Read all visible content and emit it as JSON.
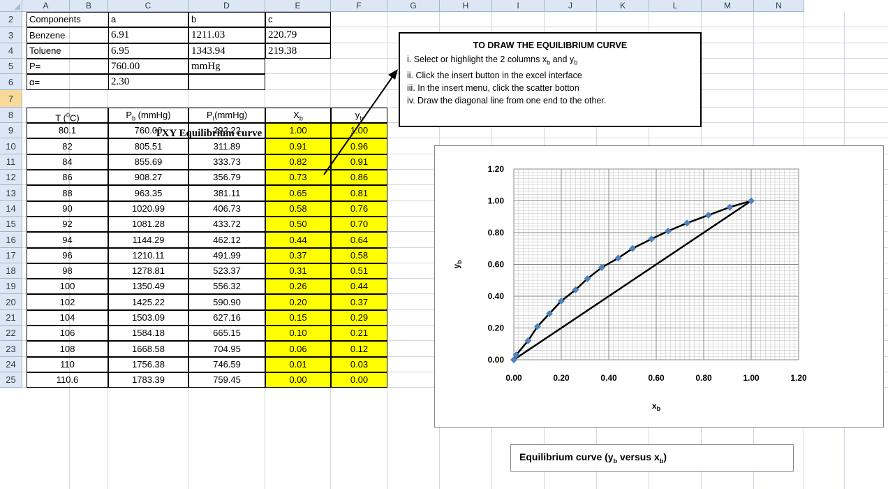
{
  "columns": [
    "A",
    "B",
    "C",
    "D",
    "E",
    "F",
    "G",
    "H",
    "I",
    "J",
    "K",
    "L",
    "M",
    "N"
  ],
  "rows": [
    "2",
    "3",
    "4",
    "5",
    "6",
    "7",
    "8",
    "9",
    "10",
    "11",
    "12",
    "13",
    "14",
    "15",
    "16",
    "17",
    "18",
    "19",
    "20",
    "21",
    "22",
    "23",
    "24",
    "25"
  ],
  "constants": {
    "headers": [
      "Components",
      "a",
      "b",
      "c"
    ],
    "benzene": [
      "Benzene",
      "6.91",
      "1211.03",
      "220.79"
    ],
    "toluene": [
      "Toluene",
      "6.95",
      "1343.94",
      "219.38"
    ],
    "pressure": [
      "P=",
      "760.00",
      "mmHg"
    ],
    "alpha": [
      "α=",
      "2.30"
    ]
  },
  "table": {
    "title": "TXY Equilibrium curve data",
    "headers": {
      "t": "T (",
      "t_sup": "0",
      "t_end": "C)",
      "pb": "P",
      "pb_sub": "b",
      "pb_end": " (mmHg)",
      "pt": "P",
      "pt_sub": "t",
      "pt_end": "(mmHg)",
      "xb": "X",
      "xb_sub": "b",
      "yb": "y",
      "yb_sub": "b"
    },
    "rows": [
      [
        "80.1",
        "760.00",
        "292.22",
        "1.00",
        "1.00"
      ],
      [
        "82",
        "805.51",
        "311.89",
        "0.91",
        "0.96"
      ],
      [
        "84",
        "855.69",
        "333.73",
        "0.82",
        "0.91"
      ],
      [
        "86",
        "908.27",
        "356.79",
        "0.73",
        "0.86"
      ],
      [
        "88",
        "963.35",
        "381.11",
        "0.65",
        "0.81"
      ],
      [
        "90",
        "1020.99",
        "406.73",
        "0.58",
        "0.76"
      ],
      [
        "92",
        "1081.28",
        "433.72",
        "0.50",
        "0.70"
      ],
      [
        "94",
        "1144.29",
        "462.12",
        "0.44",
        "0.64"
      ],
      [
        "96",
        "1210.11",
        "491.99",
        "0.37",
        "0.58"
      ],
      [
        "98",
        "1278.81",
        "523.37",
        "0.31",
        "0.51"
      ],
      [
        "100",
        "1350.49",
        "556.32",
        "0.26",
        "0.44"
      ],
      [
        "102",
        "1425.22",
        "590.90",
        "0.20",
        "0.37"
      ],
      [
        "104",
        "1503.09",
        "627.16",
        "0.15",
        "0.29"
      ],
      [
        "106",
        "1584.18",
        "665.15",
        "0.10",
        "0.21"
      ],
      [
        "108",
        "1668.58",
        "704.95",
        "0.06",
        "0.12"
      ],
      [
        "110",
        "1756.38",
        "746.59",
        "0.01",
        "0.03"
      ],
      [
        "110.6",
        "1783.39",
        "759.45",
        "0.00",
        "0.00"
      ]
    ]
  },
  "note": {
    "title": "TO DRAW THE EQUILIBRIUM CURVE",
    "line1": "i. Select  or highlight the 2 columns x",
    "line1_sub1": "b",
    "line1_mid": " and y",
    "line1_sub2": "b",
    "line2": "ii. Click the insert button in the excel interface",
    "line3": "iii. In the insert menu, click the scatter botton",
    "line4": "iv. Draw the diagonal line from one end to the other."
  },
  "legend": {
    "text": "Equilibrium curve (y",
    "sub1": "b",
    "mid": " versus x",
    "sub2": "b",
    "end": ")"
  },
  "chart_data": {
    "type": "scatter",
    "xlabel": "x_b",
    "ylabel": "y_b",
    "xlim": [
      0,
      1.2
    ],
    "ylim": [
      0,
      1.2
    ],
    "xticks": [
      "0.00",
      "0.20",
      "0.40",
      "0.60",
      "0.80",
      "1.00",
      "1.20"
    ],
    "yticks": [
      "0.00",
      "0.20",
      "0.40",
      "0.60",
      "0.80",
      "1.00",
      "1.20"
    ],
    "grid": true,
    "series": [
      {
        "x": [
          1.0,
          0.91,
          0.82,
          0.73,
          0.65,
          0.58,
          0.5,
          0.44,
          0.37,
          0.31,
          0.26,
          0.2,
          0.15,
          0.1,
          0.06,
          0.01,
          0.0
        ],
        "y": [
          1.0,
          0.96,
          0.91,
          0.86,
          0.81,
          0.76,
          0.7,
          0.64,
          0.58,
          0.51,
          0.44,
          0.37,
          0.29,
          0.21,
          0.12,
          0.03,
          0.0
        ],
        "marker": "diamond",
        "color": "#4f81bd",
        "line_color": "#000000"
      },
      {
        "x": [
          0,
          1
        ],
        "y": [
          0,
          1
        ],
        "line_color": "#000000"
      }
    ]
  }
}
